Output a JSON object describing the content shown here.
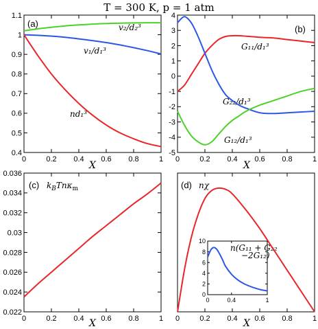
{
  "figure_title": "T = 300 K,  p = 1 atm",
  "colors": {
    "red": "#e8262a",
    "green": "#4cd12a",
    "blue": "#2b56e6",
    "axis": "#000000"
  },
  "chart_data": [
    {
      "id": "a",
      "type": "line",
      "panel_label": "(a)",
      "xlabel": "X",
      "xlim": [
        0,
        1
      ],
      "ylim": [
        0.4,
        1.1
      ],
      "xticks": [
        "0",
        "0.2",
        "0.4",
        "0.6",
        "0.8",
        "1"
      ],
      "xtick_values": [
        0,
        0.2,
        0.4,
        0.6,
        0.8,
        1
      ],
      "yticks": [
        "0.4",
        "0.5",
        "0.6",
        "0.7",
        "0.8",
        "0.9",
        "1",
        "1.1"
      ],
      "ytick_values": [
        0.4,
        0.5,
        0.6,
        0.7,
        0.8,
        0.9,
        1.0,
        1.1
      ],
      "x": [
        0,
        0.1,
        0.2,
        0.3,
        0.4,
        0.5,
        0.6,
        0.7,
        0.8,
        0.9,
        1.0
      ],
      "series": [
        {
          "name": "v₂/d₂³",
          "color": "green",
          "values": [
            1.02,
            1.03,
            1.038,
            1.045,
            1.05,
            1.054,
            1.057,
            1.059,
            1.06,
            1.061,
            1.061
          ]
        },
        {
          "name": "v₁/d₁³",
          "color": "blue",
          "values": [
            1.0,
            0.997,
            0.993,
            0.987,
            0.979,
            0.97,
            0.96,
            0.948,
            0.934,
            0.919,
            0.902
          ]
        },
        {
          "name": "nd₁³",
          "color": "red",
          "values": [
            1.0,
            0.895,
            0.8,
            0.72,
            0.65,
            0.59,
            0.54,
            0.5,
            0.47,
            0.445,
            0.43
          ]
        }
      ]
    },
    {
      "id": "b",
      "type": "line",
      "panel_label": "(b)",
      "xlabel": "X",
      "xlim": [
        0,
        1
      ],
      "ylim": [
        -5,
        4
      ],
      "xticks": [
        "0",
        "0.2",
        "0.4",
        "0.6",
        "0.8",
        "1"
      ],
      "xtick_values": [
        0,
        0.2,
        0.4,
        0.6,
        0.8,
        1
      ],
      "yticks": [
        "-5",
        "-4",
        "-3",
        "-2",
        "-1",
        "0",
        "1",
        "2",
        "3",
        "4"
      ],
      "ytick_values": [
        -5,
        -4,
        -3,
        -2,
        -1,
        0,
        1,
        2,
        3,
        4
      ],
      "x": [
        0,
        0.05,
        0.1,
        0.15,
        0.2,
        0.25,
        0.3,
        0.35,
        0.4,
        0.45,
        0.5,
        0.6,
        0.7,
        0.8,
        0.9,
        1.0
      ],
      "series": [
        {
          "name": "G₁₁/d₁³",
          "color": "red",
          "values": [
            -1.0,
            -0.6,
            0.1,
            0.8,
            1.5,
            2.0,
            2.4,
            2.6,
            2.65,
            2.65,
            2.62,
            2.55,
            2.5,
            2.4,
            2.3,
            2.2
          ]
        },
        {
          "name": "G₂₂/d₁³",
          "color": "blue",
          "values": [
            3.5,
            3.9,
            3.5,
            2.6,
            1.5,
            0.4,
            -0.5,
            -1.2,
            -1.6,
            -1.9,
            -2.1,
            -2.4,
            -2.45,
            -2.4,
            -2.35,
            -2.3
          ]
        },
        {
          "name": "G₁₂/d₁³",
          "color": "green",
          "values": [
            -2.3,
            -3.2,
            -3.9,
            -4.3,
            -4.5,
            -4.3,
            -3.8,
            -3.3,
            -2.9,
            -2.6,
            -2.3,
            -1.9,
            -1.6,
            -1.3,
            -1.0,
            -0.8
          ]
        }
      ]
    },
    {
      "id": "c",
      "type": "line",
      "panel_label": "(c)",
      "series_label": "k_BTnκ_m",
      "xlabel": "X",
      "xlim": [
        0,
        1
      ],
      "ylim": [
        0.022,
        0.036
      ],
      "xticks": [
        "0",
        "0.2",
        "0.4",
        "0.6",
        "0.8",
        "1"
      ],
      "xtick_values": [
        0,
        0.2,
        0.4,
        0.6,
        0.8,
        1
      ],
      "yticks": [
        "0.022",
        "0.024",
        "0.026",
        "0.028",
        "0.03",
        "0.032",
        "0.034",
        "0.036"
      ],
      "ytick_values": [
        0.022,
        0.024,
        0.026,
        0.028,
        0.03,
        0.032,
        0.034,
        0.036
      ],
      "x": [
        0,
        0.1,
        0.2,
        0.3,
        0.4,
        0.5,
        0.6,
        0.7,
        0.8,
        0.9,
        1.0
      ],
      "series": [
        {
          "name": "",
          "color": "red",
          "values": [
            0.0235,
            0.0248,
            0.026,
            0.0272,
            0.0284,
            0.0296,
            0.0307,
            0.0318,
            0.0329,
            0.0339,
            0.035
          ]
        }
      ]
    },
    {
      "id": "d",
      "type": "line",
      "panel_label": "(d)",
      "series_label": "nχ",
      "xlabel": "X",
      "xlim": [
        0,
        1
      ],
      "ylim": [
        0,
        0.6
      ],
      "xticks": [
        "0",
        "0.2",
        "0.4",
        "0.6",
        "0.8",
        "1"
      ],
      "xtick_values": [
        0,
        0.2,
        0.4,
        0.6,
        0.8,
        1
      ],
      "x": [
        0,
        0.05,
        0.1,
        0.15,
        0.2,
        0.25,
        0.3,
        0.35,
        0.4,
        0.5,
        0.6,
        0.7,
        0.8,
        0.9,
        1.0
      ],
      "series": [
        {
          "name": "",
          "color": "red",
          "values": [
            0.0,
            0.18,
            0.32,
            0.42,
            0.49,
            0.525,
            0.535,
            0.53,
            0.51,
            0.44,
            0.36,
            0.27,
            0.18,
            0.09,
            0.0
          ]
        }
      ],
      "inset": {
        "label_line1": "n(G₁₁ + G₂₂",
        "label_line2": "−2G₁₂)",
        "xlim": [
          0,
          1
        ],
        "ylim": [
          0,
          10
        ],
        "xticks": [
          "0",
          "0.4",
          "1"
        ],
        "xtick_values": [
          0,
          0.4,
          1
        ],
        "yticks": [
          "0",
          "2",
          "4",
          "6",
          "8",
          "10"
        ],
        "ytick_values": [
          0,
          2,
          4,
          6,
          8,
          10
        ],
        "x": [
          0,
          0.05,
          0.1,
          0.15,
          0.2,
          0.25,
          0.3,
          0.4,
          0.5,
          0.6,
          0.7,
          0.8,
          0.9,
          1.0
        ],
        "values": [
          7.0,
          8.3,
          8.8,
          8.5,
          7.6,
          6.5,
          5.3,
          3.8,
          2.8,
          2.1,
          1.6,
          1.2,
          0.9,
          0.7
        ],
        "color": "blue"
      }
    }
  ]
}
